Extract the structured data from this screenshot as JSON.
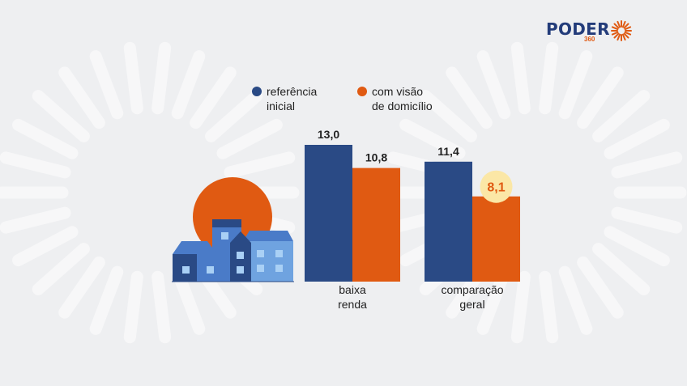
{
  "brand": {
    "logo_text": "PODER",
    "logo_sub": "360",
    "primary_color": "#2a4a85",
    "accent_color": "#e05a12"
  },
  "chart_data": {
    "type": "bar",
    "title": "",
    "xlabel": "",
    "ylabel": "",
    "ylim": [
      0,
      13.0
    ],
    "grid": false,
    "legend_position": "top",
    "categories": [
      [
        "baixa",
        "renda"
      ],
      [
        "comparação",
        "geral"
      ]
    ],
    "series": [
      {
        "name": [
          "referência",
          "inicial"
        ],
        "color": "#2a4a85",
        "values": [
          13.0,
          11.4
        ]
      },
      {
        "name": [
          "com visão",
          "de domicílio"
        ],
        "color": "#e05a12",
        "values": [
          10.8,
          8.1
        ]
      }
    ],
    "value_labels": [
      [
        "13,0",
        "11,4"
      ],
      [
        "10,8",
        "8,1"
      ]
    ],
    "highlight": {
      "series": 1,
      "category": 1,
      "color": "#fbe7a6",
      "label_color": "#e05a12"
    },
    "value_label_color": "#222222"
  },
  "illustration": {
    "subject": "houses-icon",
    "sun_color": "#e05a12",
    "house_colors": [
      "#2a4a85",
      "#4a7bc8",
      "#6fa3e0"
    ]
  }
}
